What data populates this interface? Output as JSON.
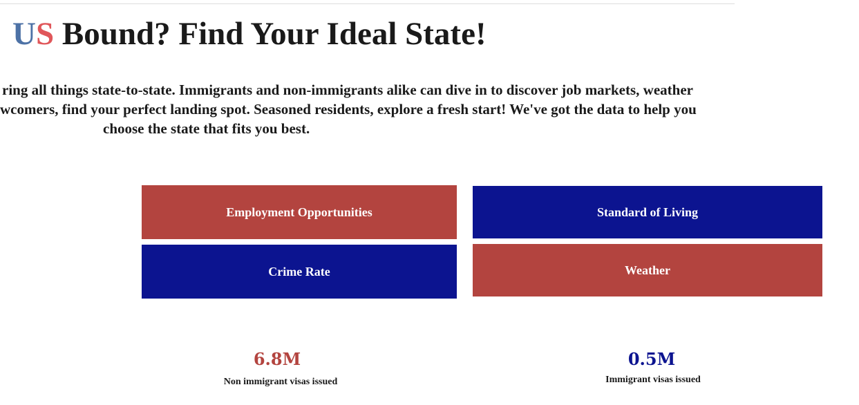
{
  "header": {
    "title_parts": [
      "U",
      "S",
      "Bound? Find Your Ideal State!"
    ]
  },
  "intro": {
    "lines": [
      "ring all things state-to-state. Immigrants and non-immigrants alike can dive in to discover job markets, weather",
      "wcomers, find your perfect landing spot. Seasoned residents, explore a fresh start! We've got the data to help you",
      "choose the state that fits you best."
    ]
  },
  "buttons": [
    "Employment Opportunities",
    "Standard of Living",
    "Crime Rate",
    "Weather"
  ],
  "stats": [
    {
      "value": "6.8M",
      "label": "Non immigrant visas issued"
    },
    {
      "value": "0.5M",
      "label": "Immigrant visas issued"
    }
  ]
}
